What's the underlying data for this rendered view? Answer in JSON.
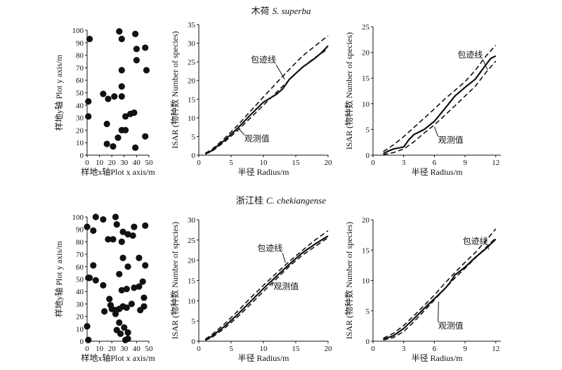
{
  "rows": [
    {
      "title_cn": "木荷",
      "title_sp": "S. superba"
    },
    {
      "title_cn": "浙江桂",
      "title_sp": "C. chekiangense"
    }
  ],
  "labels": {
    "map_x": "样地x轴Plot x axis/m",
    "map_y": "样地y轴 Plot y axis/m",
    "isar_x": "半径 Radius/m",
    "isar_y": "ISAR (物种数 Number of species)",
    "envelope": "包迹线",
    "observed": "观测值"
  },
  "chart_data": [
    {
      "type": "scatter",
      "title": "木荷 S. superba",
      "xlabel": "样地x轴Plot x axis/m",
      "ylabel": "样地y轴 Plot y axis/m",
      "xlim": [
        0,
        50
      ],
      "ylim": [
        0,
        100
      ],
      "xticks": [
        0,
        10,
        20,
        30,
        40,
        50
      ],
      "yticks": [
        0,
        10,
        20,
        30,
        40,
        50,
        60,
        70,
        80,
        90,
        100
      ],
      "points": [
        [
          2,
          93
        ],
        [
          26,
          99
        ],
        [
          28,
          93
        ],
        [
          39,
          97
        ],
        [
          40,
          85
        ],
        [
          47,
          86
        ],
        [
          48,
          68
        ],
        [
          40,
          76
        ],
        [
          28,
          68
        ],
        [
          1,
          43
        ],
        [
          13,
          49
        ],
        [
          17,
          45
        ],
        [
          22,
          47
        ],
        [
          28,
          47
        ],
        [
          28,
          55
        ],
        [
          1,
          31
        ],
        [
          16,
          25
        ],
        [
          31,
          31
        ],
        [
          35,
          33
        ],
        [
          38,
          34
        ],
        [
          28,
          20
        ],
        [
          31,
          20
        ],
        [
          25,
          14
        ],
        [
          16,
          9
        ],
        [
          21,
          7
        ],
        [
          39,
          6
        ],
        [
          47,
          15
        ]
      ]
    },
    {
      "type": "line",
      "title": "木荷 S. superba",
      "xlabel": "半径 Radius/m",
      "ylabel": "ISAR (物种数 Number of species)",
      "xlim": [
        0,
        20
      ],
      "ylim": [
        0,
        35
      ],
      "xticks": [
        0,
        5,
        10,
        15,
        20
      ],
      "yticks": [
        0,
        5,
        10,
        15,
        20,
        25,
        30,
        35
      ],
      "series": [
        {
          "role": "upper",
          "x": [
            1,
            2,
            4,
            6,
            8,
            10,
            12,
            14,
            16,
            18,
            20
          ],
          "values": [
            0.5,
            1.5,
            4.5,
            8.0,
            11.8,
            15.6,
            19.3,
            23.0,
            26.5,
            29.3,
            32.0
          ]
        },
        {
          "role": "lower",
          "x": [
            1,
            2,
            4,
            6,
            8,
            10,
            12,
            14,
            16,
            18,
            20
          ],
          "values": [
            0.3,
            1.0,
            3.6,
            6.6,
            10.0,
            13.4,
            16.8,
            20.2,
            23.5,
            26.2,
            28.5
          ]
        },
        {
          "role": "observed",
          "x": [
            1,
            2,
            4,
            6,
            8,
            10,
            12,
            13,
            14,
            16,
            18,
            19,
            20
          ],
          "values": [
            0.3,
            1.2,
            4.0,
            7.2,
            10.8,
            14.2,
            16.3,
            17.8,
            20.3,
            23.5,
            26.0,
            27.5,
            29.3
          ]
        }
      ]
    },
    {
      "type": "line",
      "title": "木荷 S. superba",
      "xlabel": "半径 Radius/m",
      "ylabel": "ISAR (物种数 Number of species)",
      "xlim": [
        0,
        12.5
      ],
      "ylim": [
        0,
        25
      ],
      "xticks": [
        0,
        3,
        6,
        9,
        12
      ],
      "yticks": [
        0,
        5,
        10,
        15,
        20,
        25
      ],
      "series": [
        {
          "role": "upper",
          "x": [
            1,
            2,
            3,
            4,
            5,
            6,
            7,
            8,
            9,
            10,
            11,
            12
          ],
          "values": [
            0.7,
            2.0,
            3.6,
            5.4,
            7.2,
            9.0,
            10.9,
            12.6,
            14.3,
            16.5,
            19.2,
            21.4
          ]
        },
        {
          "role": "lower",
          "x": [
            1,
            2,
            3,
            4,
            5,
            6,
            7,
            8,
            9,
            10,
            11,
            12
          ],
          "values": [
            0.1,
            0.5,
            1.2,
            2.6,
            4.3,
            5.9,
            7.7,
            9.6,
            11.5,
            13.4,
            16.0,
            18.3
          ]
        },
        {
          "role": "observed",
          "x": [
            1,
            1.5,
            2,
            3,
            3.5,
            4,
            5,
            6,
            7,
            8,
            9,
            10,
            11,
            11.5,
            12
          ],
          "values": [
            0.3,
            0.8,
            1.2,
            1.6,
            3.0,
            4.0,
            5.0,
            6.6,
            9.0,
            11.5,
            13.2,
            14.8,
            17.5,
            18.8,
            19.3
          ]
        }
      ]
    },
    {
      "type": "scatter",
      "title": "浙江桂 C. chekiangense",
      "xlabel": "样地x轴Plot x axis/m",
      "ylabel": "样地y轴 Plot y axis/m",
      "xlim": [
        0,
        50
      ],
      "ylim": [
        0,
        100
      ],
      "xticks": [
        0,
        10,
        20,
        30,
        40,
        50
      ],
      "yticks": [
        0,
        10,
        20,
        30,
        40,
        50,
        60,
        70,
        80,
        90,
        100
      ],
      "points": [
        [
          0,
          92
        ],
        [
          5,
          89
        ],
        [
          7,
          100
        ],
        [
          13,
          98
        ],
        [
          17,
          82
        ],
        [
          21,
          82
        ],
        [
          23,
          100
        ],
        [
          24,
          94
        ],
        [
          29,
          88
        ],
        [
          33,
          86
        ],
        [
          38,
          92
        ],
        [
          47,
          93
        ],
        [
          37,
          85
        ],
        [
          28,
          80
        ],
        [
          5,
          61
        ],
        [
          1,
          51
        ],
        [
          2,
          51
        ],
        [
          7,
          49
        ],
        [
          13,
          45
        ],
        [
          26,
          54
        ],
        [
          29,
          67
        ],
        [
          33,
          60
        ],
        [
          42,
          67
        ],
        [
          47,
          61
        ],
        [
          38,
          43
        ],
        [
          45,
          48
        ],
        [
          14,
          24
        ],
        [
          19,
          29
        ],
        [
          20,
          26
        ],
        [
          23,
          25
        ],
        [
          26,
          26
        ],
        [
          29,
          28
        ],
        [
          32,
          27
        ],
        [
          36,
          30
        ],
        [
          46,
          35
        ],
        [
          42,
          44
        ],
        [
          18,
          34
        ],
        [
          28,
          41
        ],
        [
          32,
          42
        ],
        [
          23,
          22
        ],
        [
          26,
          15
        ],
        [
          24,
          9
        ],
        [
          0,
          12
        ],
        [
          1,
          1
        ],
        [
          27,
          6
        ],
        [
          30,
          11
        ],
        [
          33,
          7
        ],
        [
          31,
          1
        ],
        [
          33,
          2
        ],
        [
          43,
          25
        ],
        [
          46,
          28
        ]
      ]
    },
    {
      "type": "line",
      "title": "浙江桂 C. chekiangense",
      "xlabel": "半径 Radius/m",
      "ylabel": "ISAR (物种数 Number of species)",
      "xlim": [
        0,
        20
      ],
      "ylim": [
        0,
        30
      ],
      "xticks": [
        0,
        5,
        10,
        15,
        20
      ],
      "yticks": [
        0,
        5,
        10,
        15,
        20,
        25,
        30
      ],
      "series": [
        {
          "role": "upper",
          "x": [
            1,
            2,
            4,
            6,
            8,
            10,
            12,
            14,
            16,
            18,
            20
          ],
          "values": [
            0.5,
            1.6,
            4.3,
            7.4,
            10.7,
            13.8,
            16.8,
            19.7,
            22.4,
            25.0,
            27.3
          ]
        },
        {
          "role": "lower",
          "x": [
            1,
            2,
            4,
            6,
            8,
            10,
            12,
            14,
            16,
            18,
            20
          ],
          "values": [
            0.2,
            0.9,
            3.2,
            6.0,
            9.1,
            12.3,
            15.4,
            18.5,
            21.2,
            23.4,
            25.6
          ]
        },
        {
          "role": "observed",
          "x": [
            1,
            2,
            4,
            6,
            8,
            10,
            12,
            14,
            16,
            18,
            20
          ],
          "values": [
            0.3,
            1.2,
            3.7,
            6.6,
            9.8,
            13.0,
            16.0,
            19.0,
            21.8,
            24.0,
            26.0
          ]
        }
      ]
    },
    {
      "type": "line",
      "title": "浙江桂 C. chekiangense",
      "xlabel": "半径 Radius/m",
      "ylabel": "ISAR (物种数 Number of species)",
      "xlim": [
        0,
        12.5
      ],
      "ylim": [
        0,
        20
      ],
      "xticks": [
        0,
        3,
        6,
        9,
        12
      ],
      "yticks": [
        0,
        5,
        10,
        15,
        20
      ],
      "series": [
        {
          "role": "upper",
          "x": [
            1,
            2,
            3,
            4,
            5,
            6,
            7,
            8,
            9,
            10,
            11,
            12
          ],
          "values": [
            0.5,
            1.3,
            2.6,
            4.2,
            5.9,
            7.6,
            9.5,
            11.3,
            13.0,
            14.6,
            16.5,
            18.5
          ]
        },
        {
          "role": "lower",
          "x": [
            1,
            2,
            3,
            4,
            5,
            6,
            7,
            8,
            9,
            10,
            11,
            12
          ],
          "values": [
            0.2,
            0.6,
            1.6,
            3.2,
            5.0,
            6.8,
            8.6,
            10.4,
            12.0,
            13.7,
            15.4,
            17.0
          ]
        },
        {
          "role": "observed",
          "x": [
            1,
            2,
            3,
            4,
            5,
            6,
            7,
            7.5,
            8,
            9,
            10,
            11,
            12
          ],
          "values": [
            0.3,
            0.9,
            2.1,
            3.7,
            5.4,
            7.0,
            8.6,
            9.6,
            10.9,
            12.2,
            13.8,
            15.2,
            16.8
          ]
        }
      ]
    }
  ]
}
